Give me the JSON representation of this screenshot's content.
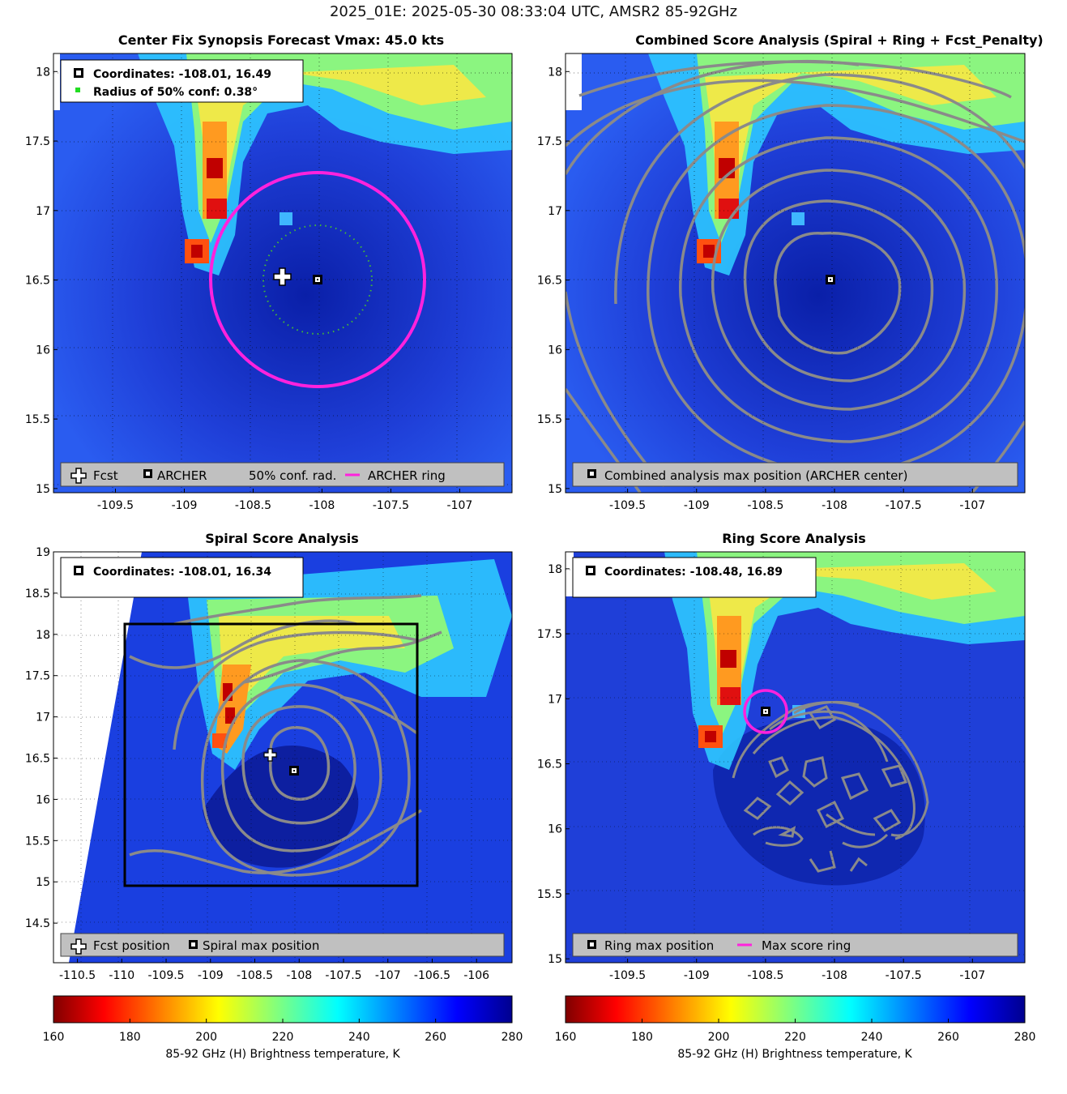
{
  "figure_title": "2025_01E: 2025-05-30 08:33:04 UTC, AMSR2 85-92GHz",
  "colors": {
    "archer_ring": "#ff22dd",
    "conf_ring": "#44bb33",
    "contour": "#8a8a8a",
    "legend_bg": "#c0c0c0"
  },
  "colorbars": [
    {
      "ticks": [
        "160",
        "180",
        "200",
        "220",
        "240",
        "260",
        "280"
      ],
      "label": "85-92 GHz (H) Brightness temperature, K"
    },
    {
      "ticks": [
        "160",
        "180",
        "200",
        "220",
        "240",
        "260",
        "280"
      ],
      "label": "85-92 GHz (H) Brightness temperature, K"
    }
  ],
  "chart_data": [
    {
      "type": "heatmap",
      "panel": "synopsis",
      "title": "Center Fix Synopsis      Forecast Vmax: 45.0 kts",
      "x_ticks": [
        "-109.5",
        "-109",
        "-108.5",
        "-108",
        "-107.5",
        "-107"
      ],
      "y_ticks": [
        "15",
        "15.5",
        "16",
        "16.5",
        "17",
        "17.5",
        "18"
      ],
      "xlim": [
        -109.95,
        -106.62
      ],
      "ylim": [
        14.97,
        18.13
      ],
      "info_lines": [
        "Coordinates: -108.01, 16.49",
        "Radius of 50% conf: 0.38°"
      ],
      "archer_center": {
        "lon": -108.01,
        "lat": 16.49
      },
      "fcst_position": {
        "lon": -108.27,
        "lat": 16.54
      },
      "conf_radius_deg": 0.38,
      "archer_ring_radius_deg": 0.78,
      "legend": [
        "Fcst",
        "ARCHER",
        "50% conf. rad.",
        "ARCHER ring"
      ]
    },
    {
      "type": "heatmap",
      "panel": "combined",
      "title": "Combined Score Analysis (Spiral + Ring + Fcst_Penalty)",
      "x_ticks": [
        "-109.5",
        "-109",
        "-108.5",
        "-108",
        "-107.5",
        "-107"
      ],
      "y_ticks": [
        "15",
        "15.5",
        "16",
        "16.5",
        "17",
        "17.5",
        "18"
      ],
      "xlim": [
        -109.95,
        -106.62
      ],
      "ylim": [
        14.97,
        18.13
      ],
      "max_position": {
        "lon": -108.01,
        "lat": 16.49
      },
      "legend": [
        "Combined analysis max position (ARCHER center)"
      ]
    },
    {
      "type": "heatmap",
      "panel": "spiral",
      "title": "Spiral Score Analysis",
      "x_ticks": [
        "-110.5",
        "-110",
        "-109.5",
        "-109",
        "-108.5",
        "-108",
        "-107.5",
        "-107",
        "-106.5",
        "-106"
      ],
      "y_ticks": [
        "14.5",
        "15",
        "15.5",
        "16",
        "16.5",
        "17",
        "17.5",
        "18",
        "18.5",
        "19"
      ],
      "xlim": [
        -110.77,
        -105.6
      ],
      "ylim": [
        14.02,
        19.0
      ],
      "info_lines": [
        "Coordinates: -108.01, 16.34"
      ],
      "max_position": {
        "lon": -108.01,
        "lat": 16.34
      },
      "fcst_position": {
        "lon": -108.27,
        "lat": 16.54
      },
      "search_box": {
        "lon": [
          -109.96,
          -106.64
        ],
        "lat": [
          14.94,
          18.15
        ]
      },
      "legend": [
        "Fcst position",
        "Spiral max position"
      ]
    },
    {
      "type": "heatmap",
      "panel": "ring",
      "title": "Ring Score Analysis",
      "x_ticks": [
        "-109.5",
        "-109",
        "-108.5",
        "-108",
        "-107.5",
        "-107"
      ],
      "y_ticks": [
        "15",
        "15.5",
        "16",
        "16.5",
        "17",
        "17.5",
        "18"
      ],
      "xlim": [
        -109.95,
        -106.62
      ],
      "ylim": [
        14.97,
        18.13
      ],
      "info_lines": [
        "Coordinates: -108.48, 16.89"
      ],
      "max_position": {
        "lon": -108.48,
        "lat": 16.89
      },
      "ring_radius_deg": 0.16,
      "legend": [
        "Ring max position",
        "Max score ring"
      ]
    }
  ]
}
